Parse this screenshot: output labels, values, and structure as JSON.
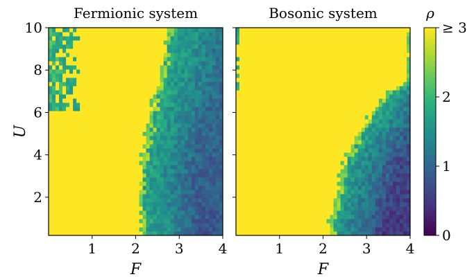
{
  "chart_data": [
    {
      "type": "heatmap",
      "panel": "left",
      "title": "Fermionic system",
      "xlabel": "F",
      "ylabel": "U",
      "xlim": [
        0,
        4
      ],
      "ylim": [
        0.2,
        10
      ],
      "xticks": [
        "1",
        "2",
        "3",
        "4"
      ],
      "yticks": [
        "2",
        "4",
        "6",
        "8",
        "10"
      ],
      "grid": false,
      "boundary_U": [
        1,
        2,
        3,
        4,
        5,
        6,
        7,
        8,
        9,
        10
      ],
      "boundary_F": [
        2.15,
        2.05,
        2.1,
        2.15,
        2.25,
        2.35,
        2.45,
        2.55,
        2.65,
        2.75
      ],
      "value_low_F": 3,
      "value_high_F_range": [
        0.8,
        1.9
      ],
      "upper_left_region": {
        "F_max": 0.7,
        "U_min": 6.0,
        "value": 2.0
      }
    },
    {
      "type": "heatmap",
      "panel": "right",
      "title": "Bosonic system",
      "xlabel": "F",
      "ylabel": "",
      "xlim": [
        0,
        4
      ],
      "ylim": [
        0.2,
        10
      ],
      "xticks": [
        "1",
        "2",
        "3",
        "4"
      ],
      "yticks": [],
      "grid": false,
      "boundary_U": [
        0.2,
        1,
        2,
        3,
        4,
        5,
        6,
        7,
        7.5
      ],
      "boundary_F": [
        2.1,
        2.15,
        2.3,
        2.4,
        2.55,
        2.8,
        3.1,
        3.5,
        3.95
      ],
      "value_low_F": 3,
      "value_high_F_range": [
        0.5,
        1.9
      ],
      "upper_left_region": {
        "F_max": 0.12,
        "U_min": 7.0,
        "value": 2.0
      }
    }
  ],
  "colorbar": {
    "label": "ρ",
    "colormap": "viridis",
    "range": [
      0,
      3
    ],
    "ticks": [
      "0",
      "1",
      "2",
      "≥ 3"
    ]
  }
}
